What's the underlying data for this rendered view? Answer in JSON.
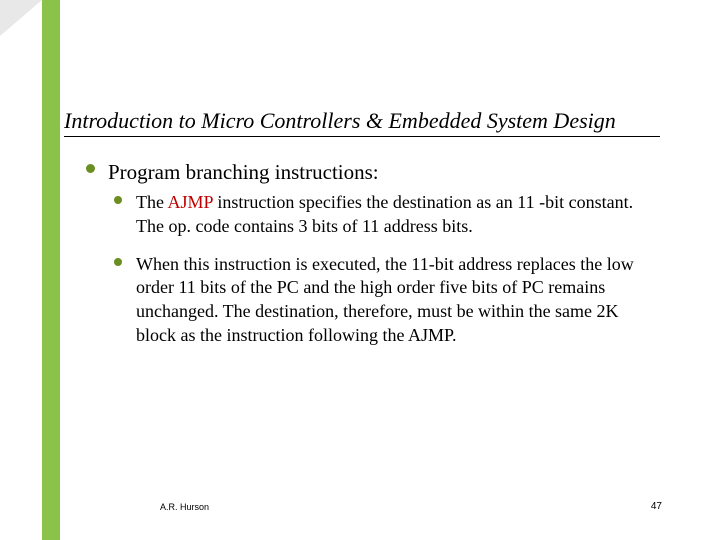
{
  "colors": {
    "accent": "#8bc34a",
    "bullet": "#6b8e23",
    "highlight": "#c00000",
    "text": "#000000",
    "background": "#ffffff",
    "shadow": "#e8e8e8"
  },
  "title": "Introduction to Micro Controllers & Embedded System Design",
  "main_bullet": "Program branching instructions:",
  "sub1_pre": "The ",
  "sub1_hl": "AJMP",
  "sub1_post": " instruction specifies the destination as an 11 -bit constant.  The op. code contains 3 bits of 11 address bits.",
  "sub2": "When this instruction is executed, the 11-bit address replaces the low order 11 bits of the PC and the high order five bits of PC remains unchanged.  The destination, therefore, must be within the same 2K block as the instruction following the AJMP.",
  "footer": {
    "author": "A.R. Hurson",
    "page": "47"
  }
}
